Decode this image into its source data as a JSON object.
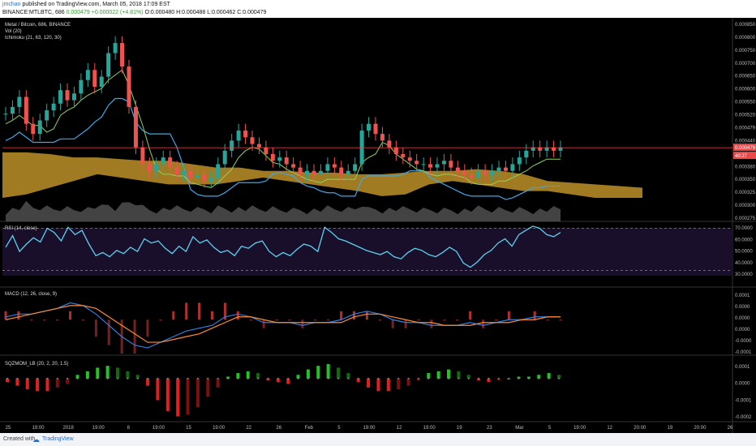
{
  "header": {
    "author": "jmchan",
    "published_text": " published on TradingView.com, March 05, 2018 17:09 EST",
    "symbol": "BINANCE:MTLBTC, 686",
    "o_h_l_c": "0.000479",
    "change": "+0.000022 (+4.81%)",
    "open": "O:0.000480",
    "high": "H:0.000488",
    "low": "L:0.000462",
    "close": "C:0.000479"
  },
  "footer": {
    "created_with": "Created with",
    "brand": "TradingView",
    "logo_icon": "tradingview-logo-icon"
  },
  "colors": {
    "background": "#000000",
    "up_candle": "#26a69a",
    "down_candle": "#ef5350",
    "cloud": "#c89a2a",
    "kijun": "#3fa7e8",
    "tenkan": "#8fd45a",
    "rsi": "#5ad2f0",
    "macd": "#2f7fe0",
    "signal": "#ff8a30",
    "price_line": "#ff4040"
  },
  "panes": {
    "price": {
      "title": "Metal / Bitcoin, 686, BINANCE",
      "vol_label": "Vol (20)",
      "ichimoku_label": "Ichimoku (21, 63, 120, 30)",
      "price_tag": "0.000479",
      "countdown_tag": "40:27",
      "ticks": [
        "0.000850",
        "0.000800",
        "0.000750",
        "0.000700",
        "0.000650",
        "0.000600",
        "0.000550",
        "0.000520",
        "0.000479",
        "0.000440",
        "0.000410",
        "0.000380",
        "0.000350",
        "0.000325",
        "0.000300",
        "0.000275"
      ]
    },
    "rsi": {
      "title": "RSI (14, close)",
      "ticks": [
        "70.0000",
        "60.0000",
        "50.0000",
        "40.0000",
        "30.0000"
      ]
    },
    "macd": {
      "title": "MACD (12, 26, close, 9)",
      "ticks": [
        "0.0001",
        "0.0000",
        "0.0000",
        "0.0000",
        "-0.0000",
        "-0.0001"
      ]
    },
    "sqz": {
      "title": "SQZMOM_LB (20, 2, 20, 1.5)",
      "ticks": [
        "0.0001",
        "0.0000",
        "-0.0001",
        "-0.0002"
      ]
    }
  },
  "x_axis": [
    "25",
    "19:00",
    "2018",
    "19:00",
    "8",
    "19:00",
    "15",
    "19:00",
    "22",
    "26",
    "Feb",
    "5",
    "19:00",
    "12",
    "19:00",
    "19",
    "23",
    "Mar",
    "5",
    "19:00",
    "12",
    "20:00",
    "19",
    "20:00",
    "26"
  ],
  "chart_data": [
    {
      "type": "candlestick",
      "title": "Metal / Bitcoin, 686, BINANCE",
      "ylim": [
        0.00026,
        0.00086
      ],
      "price_close_series": [
        0.00058,
        0.0006,
        0.00063,
        0.00055,
        0.00052,
        0.00056,
        0.00059,
        0.00061,
        0.00065,
        0.00062,
        0.00064,
        0.00068,
        0.00071,
        0.00066,
        0.00069,
        0.00076,
        0.00079,
        0.00072,
        0.0006,
        0.00048,
        0.00043,
        0.00041,
        0.00043,
        0.00045,
        0.00042,
        0.0004,
        0.00041,
        0.00039,
        0.0004,
        0.00038,
        0.00039,
        0.00043,
        0.00047,
        0.0005,
        0.00053,
        0.00051,
        0.00049,
        0.00048,
        0.00046,
        0.00044,
        0.00045,
        0.00043,
        0.00042,
        0.0004,
        0.00041,
        0.0004,
        0.00041,
        0.00043,
        0.00042,
        0.0004,
        0.00041,
        0.00043,
        0.00053,
        0.00055,
        0.00052,
        0.0005,
        0.00048,
        0.00046,
        0.00045,
        0.00044,
        0.00043,
        0.00043,
        0.00042,
        0.00043,
        0.00044,
        0.00042,
        0.00041,
        0.0004,
        0.00039,
        0.00041,
        0.0004,
        0.00041,
        0.00042,
        0.00041,
        0.00043,
        0.00045,
        0.00047,
        0.00048,
        0.00047,
        0.00048,
        0.00047,
        0.00048
      ],
      "ichimoku": {
        "cloud_upper": [
          0.000465,
          0.000465,
          0.00046,
          0.00045,
          0.00045,
          0.000445,
          0.00044,
          0.00044,
          0.00043,
          0.00042,
          0.00042,
          0.00041,
          0.00041,
          0.000405,
          0.000405,
          0.0004,
          0.0004,
          0.000405,
          0.00041,
          0.00041,
          0.000415,
          0.00041,
          0.0004,
          0.00038,
          0.000375,
          0.00037,
          0.000365,
          0.00036
        ],
        "cloud_lower": [
          0.00033,
          0.00034,
          0.00036,
          0.00038,
          0.0004,
          0.00039,
          0.00038,
          0.00037,
          0.00037,
          0.00037,
          0.00038,
          0.00039,
          0.00038,
          0.00037,
          0.00036,
          0.00035,
          0.000335,
          0.00034,
          0.00037,
          0.00038,
          0.00037,
          0.00036,
          0.00035,
          0.00035,
          0.00034,
          0.00033,
          0.00033,
          0.00033
        ]
      },
      "volume_label": "Vol (20)"
    },
    {
      "type": "line",
      "title": "RSI (14, close)",
      "ylim": [
        25,
        75
      ],
      "levels": [
        70,
        30
      ],
      "values": [
        52,
        63,
        48,
        55,
        61,
        57,
        70,
        66,
        58,
        71,
        64,
        68,
        55,
        44,
        47,
        43,
        49,
        46,
        52,
        48,
        60,
        56,
        58,
        51,
        46,
        53,
        48,
        62,
        56,
        59,
        52,
        47,
        49,
        44,
        53,
        51,
        56,
        58,
        48,
        43,
        47,
        44,
        50,
        55,
        53,
        48,
        71,
        66,
        60,
        58,
        55,
        52,
        49,
        47,
        45,
        48,
        43,
        41,
        47,
        51,
        49,
        45,
        43,
        47,
        52,
        48,
        37,
        33,
        38,
        45,
        49,
        56,
        60,
        53,
        64,
        68,
        72,
        70,
        64,
        62,
        66
      ]
    },
    {
      "type": "line",
      "title": "MACD (12, 26, close, 9)",
      "ylim": [
        -0.00012,
        0.00011
      ],
      "series": [
        {
          "name": "MACD",
          "values": [
            1e-05,
            2e-05,
            2e-05,
            3e-05,
            4e-05,
            6e-05,
            5e-05,
            2e-05,
            -2e-05,
            -6e-05,
            -9e-05,
            -0.0001,
            -8e-05,
            -6e-05,
            -4e-05,
            -3e-05,
            -2e-05,
            1e-05,
            2e-05,
            1e-05,
            -1e-05,
            -1e-05,
            -1e-05,
            -2e-05,
            -1e-05,
            -1e-05,
            0.0,
            2e-05,
            3e-05,
            2e-05,
            0.0,
            -1e-05,
            -1e-05,
            -2e-05,
            -2e-05,
            -2e-05,
            -1e-05,
            -2e-05,
            -1e-05,
            0.0,
            0.0,
            1e-05,
            1e-05,
            1e-05
          ]
        },
        {
          "name": "Signal",
          "values": [
            0.0,
            1e-05,
            2e-05,
            3e-05,
            4e-05,
            5e-05,
            5e-05,
            4e-05,
            1e-05,
            -2e-05,
            -5e-05,
            -8e-05,
            -8e-05,
            -7e-05,
            -6e-05,
            -5e-05,
            -3e-05,
            -1e-05,
            1e-05,
            1e-05,
            0.0,
            -1e-05,
            -1e-05,
            -1e-05,
            -1e-05,
            -1e-05,
            -1e-05,
            1e-05,
            2e-05,
            2e-05,
            1e-05,
            0.0,
            -1e-05,
            -1e-05,
            -2e-05,
            -2e-05,
            -2e-05,
            -1e-05,
            -1e-05,
            -1e-05,
            0.0,
            0.0,
            1e-05,
            1e-05
          ]
        }
      ]
    },
    {
      "type": "bar",
      "title": "SQZMOM_LB (20, 2, 20, 1.5)",
      "ylim": [
        -0.00023,
        0.00012
      ],
      "values": [
        -2e-05,
        -4e-05,
        -6e-05,
        -7e-05,
        -7e-05,
        -5e-05,
        -3e-05,
        2e-05,
        4e-05,
        6e-05,
        7e-05,
        6e-05,
        4e-05,
        2e-05,
        -4e-05,
        -0.00012,
        -0.00018,
        -0.00021,
        -0.0002,
        -0.00016,
        -0.0001,
        -5e-05,
        1e-05,
        3e-05,
        4e-05,
        3e-05,
        -1e-05,
        -2e-05,
        -3e-05,
        2e-05,
        5e-05,
        7e-05,
        8e-05,
        6e-05,
        3e-05,
        -2e-05,
        -5e-05,
        -7e-05,
        -7e-05,
        -6e-05,
        -4e-05,
        -1e-05,
        3e-05,
        4e-05,
        5e-05,
        4e-05,
        2e-05,
        -1e-05,
        -2e-05,
        -1e-05,
        0.0,
        1e-05,
        1e-05,
        2e-05,
        3e-05,
        2e-05
      ]
    }
  ]
}
